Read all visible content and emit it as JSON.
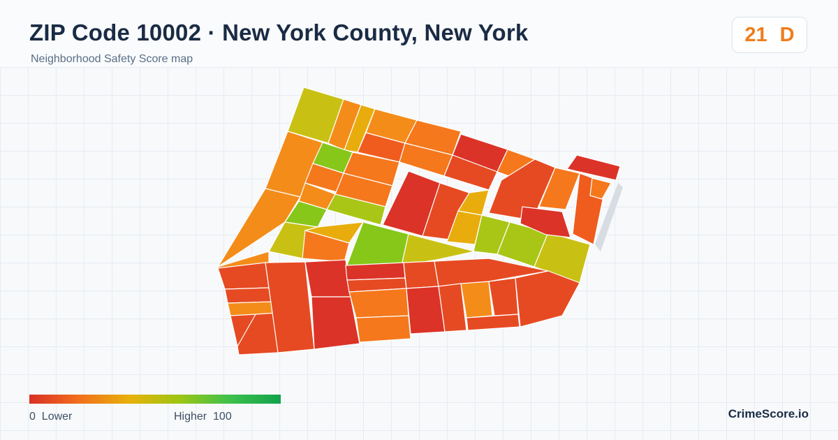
{
  "header": {
    "title": "ZIP Code 10002 · New York County, New York",
    "subtitle": "Neighborhood Safety Score map"
  },
  "score": {
    "value": "21",
    "grade": "D",
    "color": "#f07c1c"
  },
  "legend": {
    "min": "0",
    "min_label": "Lower",
    "max_label": "Higher",
    "max": "100",
    "colors": [
      "#d93025",
      "#f2701c",
      "#e7b10a",
      "#9cc614",
      "#3cc04c",
      "#12a24c"
    ]
  },
  "brand": "CrimeScore.io",
  "map": {
    "block_colors": {
      "red": "#dc3328",
      "red_orange": "#e64a22",
      "orange_red": "#ef5c1e",
      "orange": "#f5781c",
      "light_orange": "#f48c1a",
      "amber": "#e8ad0c",
      "yellow_green": "#c8c114",
      "lime": "#a9c616",
      "green": "#86c71a"
    }
  }
}
